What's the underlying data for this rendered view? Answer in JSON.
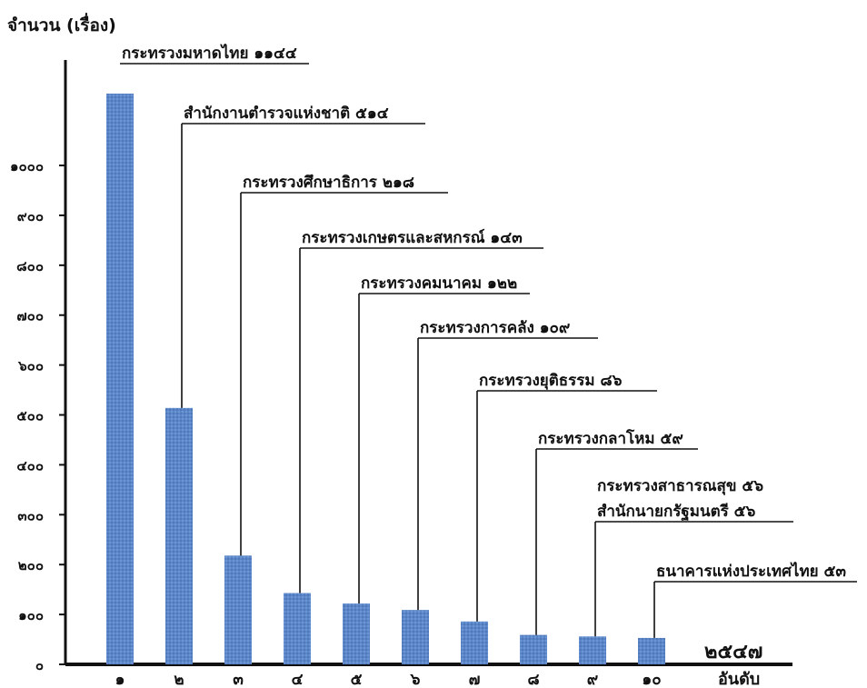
{
  "chart_data": {
    "type": "bar",
    "ylabel": "จำนวน (เรื่อง)",
    "xlabel": "อันดับ",
    "year_label": "๒๕๔๗",
    "ylim": [
      0,
      1144
    ],
    "yticks": [
      0,
      100,
      200,
      300,
      400,
      500,
      600,
      700,
      800,
      900,
      1000
    ],
    "ytick_labels": [
      "๐",
      "๑๐๐",
      "๒๐๐",
      "๓๐๐",
      "๔๐๐",
      "๕๐๐",
      "๖๐๐",
      "๗๐๐",
      "๘๐๐",
      "๙๐๐",
      "๑๐๐๐"
    ],
    "categories": [
      "๑",
      "๒",
      "๓",
      "๔",
      "๕",
      "๖",
      "๗",
      "๘",
      "๙",
      "๑๐"
    ],
    "values": [
      1144,
      514,
      218,
      143,
      122,
      109,
      86,
      59,
      56,
      53
    ],
    "annotations": [
      [
        "กระทรวงมหาดไทย ๑๑๔๔"
      ],
      [
        "สำนักงานตำรวจแห่งชาติ ๕๑๔"
      ],
      [
        "กระทรวงศึกษาธิการ ๒๑๘"
      ],
      [
        "กระทรวงเกษตรและสหกรณ์ ๑๔๓"
      ],
      [
        "กระทรวงคมนาคม ๑๒๒"
      ],
      [
        "กระทรวงการคลัง ๑๐๙"
      ],
      [
        "กระทรวงยุติธรรม ๘๖"
      ],
      [
        "กระทรวงกลาโหม ๕๙"
      ],
      [
        "กระทรวงสาธารณสุข ๕๖",
        "สำนักนายกรัฐมนตรี ๕๖"
      ],
      [
        "ธนาคารแห่งประเทศไทย ๕๓"
      ]
    ],
    "bar_color": "#5b86c7",
    "grid": false
  }
}
